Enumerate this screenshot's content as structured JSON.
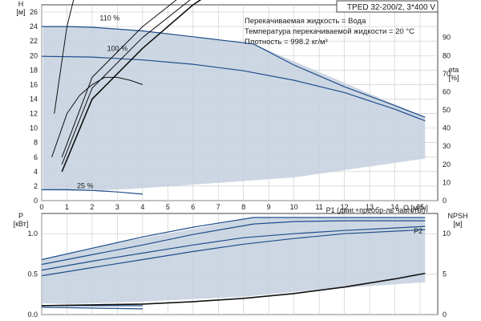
{
  "chart_data": [
    {
      "type": "line",
      "title": "TPED 32-200/2, 3*400 V",
      "annotations": [
        "Перекачиваемая жидкость = Вода",
        "Температура перекачиваемой жидкости = 20 °C",
        "Плотность = 998.2 кг/м³"
      ],
      "xlabel": "Q [м³/ч]",
      "ylabel": "H\n[м]",
      "y2label": "eta\n[%]",
      "xlim": [
        0,
        15.7
      ],
      "ylim": [
        0,
        27
      ],
      "y2lim": [
        0,
        108
      ],
      "grid": true,
      "x_ticks": [
        0,
        1,
        2,
        3,
        4,
        5,
        6,
        7,
        8,
        9,
        10,
        11,
        12,
        13,
        14,
        15
      ],
      "y_ticks": [
        0,
        2,
        4,
        6,
        8,
        10,
        12,
        14,
        16,
        18,
        20,
        22,
        24,
        26
      ],
      "y2_ticks": [
        0,
        10,
        20,
        30,
        40,
        50,
        60,
        70,
        80,
        90
      ],
      "operating_region": {
        "x": [
          0.05,
          0.3,
          0.6,
          0.95,
          1.3,
          2,
          4,
          8.4,
          15.2,
          15.2,
          10,
          6,
          3.5,
          2,
          1,
          0.05
        ],
        "y": [
          24.1,
          24.1,
          24.1,
          24.1,
          24.1,
          24,
          23.4,
          21.6,
          11.5,
          5.8,
          3.2,
          2.2,
          1.6,
          1.35,
          1.35,
          1.4
        ]
      },
      "series": [
        {
          "name": "110 %",
          "color": "#1f4e8c",
          "x": [
            0,
            1,
            2,
            4,
            6,
            8.4,
            10,
            12,
            14,
            15.2
          ],
          "y": [
            24.0,
            24.0,
            23.9,
            23.4,
            22.6,
            21.6,
            18.7,
            15.7,
            13.1,
            11.5
          ]
        },
        {
          "name": "100 %",
          "color": "#1f4e8c",
          "x": [
            0,
            2,
            4,
            6,
            8,
            10,
            12,
            14,
            15.2
          ],
          "y": [
            19.9,
            19.8,
            19.4,
            18.8,
            17.9,
            16.6,
            14.9,
            12.6,
            11.0
          ]
        },
        {
          "name": "25 %",
          "color": "#1f4e8c",
          "x": [
            0,
            1,
            2,
            3,
            4
          ],
          "y": [
            1.5,
            1.5,
            1.4,
            1.2,
            0.9
          ]
        },
        {
          "name": "",
          "color": "#111111",
          "x": [
            0.5,
            1,
            1.5,
            2,
            2.5,
            3,
            3.5,
            4
          ],
          "y": [
            12,
            24,
            31,
            36,
            38.5,
            39,
            37,
            34
          ]
        },
        {
          "name": "",
          "color": "#111111",
          "x": [
            0.4,
            1,
            1.5,
            2,
            2.5,
            3,
            3.5,
            4
          ],
          "y": [
            6,
            12,
            14.5,
            16,
            17,
            17,
            16.6,
            16
          ]
        },
        {
          "name": "",
          "color": "#111111",
          "x": [
            0.8,
            2,
            4,
            6,
            8,
            10,
            11,
            12,
            13,
            14,
            15
          ],
          "y": [
            6,
            17,
            24,
            29.5,
            33.5,
            36,
            36.4,
            36.2,
            35.5,
            34.5,
            33.2
          ]
        },
        {
          "name": "",
          "color": "#111111",
          "x": [
            0.8,
            2,
            4,
            6,
            8,
            10,
            11,
            12,
            13,
            14,
            15
          ],
          "y": [
            5,
            15.5,
            22.5,
            28,
            32.5,
            35,
            35.5,
            35.3,
            34.6,
            33.4,
            31.8
          ]
        },
        {
          "name": "",
          "color": "#111111",
          "x": [
            0.8,
            2,
            4,
            6,
            8,
            10,
            11,
            12,
            13,
            14,
            15
          ],
          "y": [
            4,
            14,
            21,
            27,
            31.6,
            34,
            34.6,
            34.4,
            33.5,
            32.2,
            30.6
          ]
        }
      ]
    },
    {
      "type": "line",
      "xlabel": "",
      "ylabel": "P\n[кВт]",
      "y2label": "NPSH\n[м]",
      "xlim": [
        0,
        15.7
      ],
      "ylim": [
        0,
        1.25
      ],
      "y2lim": [
        0,
        12.5
      ],
      "grid": true,
      "y_ticks": [
        0.0,
        0.5,
        1.0
      ],
      "y_tick_labels": [
        "0.0",
        "0.5",
        "1.0"
      ],
      "y2_ticks": [
        0,
        5,
        10
      ],
      "operating_region": {
        "x": [
          0,
          1.2,
          3,
          6,
          8.4,
          10,
          12,
          14,
          15.2,
          15.2,
          12,
          10,
          8,
          6,
          4,
          2,
          1,
          0
        ],
        "y": [
          0.68,
          0.77,
          0.89,
          1.06,
          1.2,
          1.2,
          1.2,
          1.2,
          1.2,
          0.4,
          0.33,
          0.28,
          0.22,
          0.19,
          0.16,
          0.14,
          0.13,
          0.14
        ]
      },
      "series": [
        {
          "name": "P1 (двиг.+преобр-ль частоты)",
          "color": "#1f4e8c",
          "x": [
            0,
            2,
            4,
            6,
            8.4,
            10,
            12,
            15.2
          ],
          "y": [
            0.68,
            0.82,
            0.96,
            1.08,
            1.2,
            1.2,
            1.2,
            1.2
          ]
        },
        {
          "name": "",
          "color": "#1f4e8c",
          "x": [
            0,
            2,
            4,
            6,
            8.4,
            10,
            12,
            15.2
          ],
          "y": [
            0.62,
            0.74,
            0.86,
            0.99,
            1.12,
            1.15,
            1.16,
            1.16
          ]
        },
        {
          "name": "P2",
          "color": "#1f4e8c",
          "x": [
            0,
            2,
            4,
            6,
            8,
            10,
            12,
            14,
            15.2
          ],
          "y": [
            0.55,
            0.66,
            0.76,
            0.86,
            0.95,
            1.0,
            1.04,
            1.07,
            1.09
          ]
        },
        {
          "name": "",
          "color": "#1f4e8c",
          "x": [
            0,
            2,
            4,
            6,
            8,
            10,
            12,
            15.2
          ],
          "y": [
            0.48,
            0.58,
            0.68,
            0.78,
            0.87,
            0.94,
            1.0,
            1.05
          ]
        },
        {
          "name": "",
          "color": "#1f4e8c",
          "x": [
            0,
            1,
            2,
            3,
            4
          ],
          "y": [
            0.11,
            0.11,
            0.11,
            0.11,
            0.11
          ]
        },
        {
          "name": "",
          "color": "#1f4e8c",
          "x": [
            0,
            1,
            2,
            3,
            4
          ],
          "y": [
            0.09,
            0.085,
            0.08,
            0.075,
            0.07
          ]
        },
        {
          "name": "",
          "color": "#111111",
          "axis": "y2",
          "x": [
            0,
            2,
            4,
            6,
            8,
            10,
            12,
            14,
            15.2
          ],
          "y": [
            1.1,
            1.2,
            1.3,
            1.6,
            2.0,
            2.6,
            3.4,
            4.4,
            5.1
          ]
        }
      ]
    }
  ]
}
